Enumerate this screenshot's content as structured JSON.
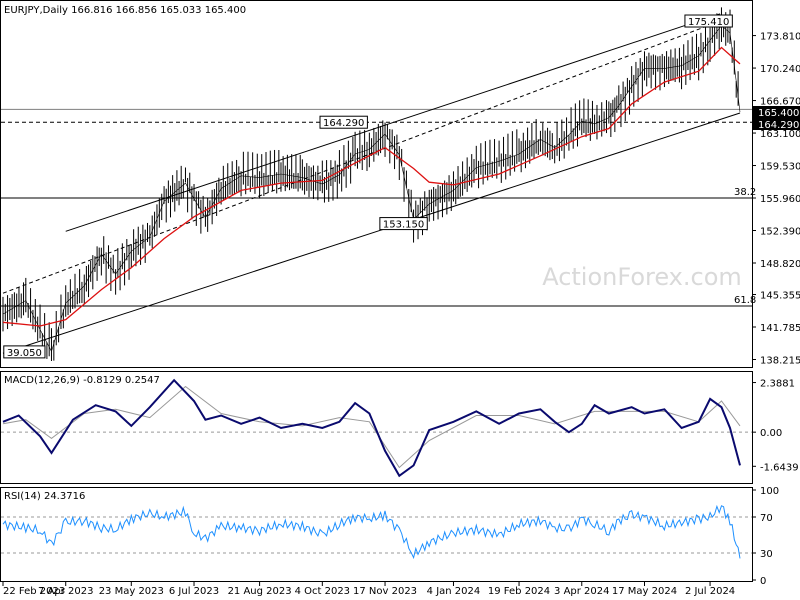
{
  "chart_data": [
    {
      "type": "line",
      "panel": "price",
      "title": "EURJPY,Daily  166.816 166.856 165.033 165.400",
      "symbol": "EURJPY",
      "timeframe": "Daily",
      "ohlc_last": {
        "open": 166.816,
        "high": 166.856,
        "low": 165.033,
        "close": 165.4
      },
      "ylim": [
        137.5,
        177.5
      ],
      "y_ticks": [
        "173.810",
        "170.240",
        "166.670",
        "163.100",
        "159.530",
        "155.960",
        "152.390",
        "148.820",
        "145.355",
        "141.785",
        "138.215"
      ],
      "x_ticks": [
        "22 Feb 2023",
        "7 Apr 2023",
        "23 May 2023",
        "6 Jul 2023",
        "21 Aug 2023",
        "4 Oct 2023",
        "17 Nov 2023",
        "4 Jan 2024",
        "19 Feb 2024",
        "3 Apr 2024",
        "17 May 2024",
        "2 Jul 2024"
      ],
      "grid": false,
      "watermark": "ActionForex.com",
      "price_labels": {
        "current": "165.400",
        "support": "164.290"
      },
      "annotations": [
        {
          "text": "175.410",
          "x": "early Jul 2024",
          "y": 175.41
        },
        {
          "text": "164.290",
          "x": "mid Oct 2023",
          "y": 164.29
        },
        {
          "text": "153.150",
          "x": "early Dec 2023",
          "y": 153.15
        },
        {
          "text": "39.050",
          "x": "late Mar 2023",
          "y": 139.05
        }
      ],
      "fib_levels": [
        {
          "label": "38.2",
          "value": 155.96
        },
        {
          "label": "61.8",
          "value": 144.1
        }
      ],
      "horizontal_levels": [
        164.29,
        165.7
      ],
      "series": [
        {
          "name": "Close",
          "color": "#000000",
          "x": [
            "2023-02-22",
            "2023-03-10",
            "2023-03-20",
            "2023-03-28",
            "2023-04-07",
            "2023-04-20",
            "2023-05-02",
            "2023-05-12",
            "2023-05-23",
            "2023-06-05",
            "2023-06-15",
            "2023-06-30",
            "2023-07-06",
            "2023-07-14",
            "2023-07-25",
            "2023-08-08",
            "2023-08-21",
            "2023-09-05",
            "2023-09-20",
            "2023-10-04",
            "2023-10-16",
            "2023-10-27",
            "2023-11-06",
            "2023-11-17",
            "2023-11-27",
            "2023-12-07",
            "2023-12-18",
            "2024-01-04",
            "2024-01-20",
            "2024-02-05",
            "2024-02-19",
            "2024-03-05",
            "2024-03-15",
            "2024-03-25",
            "2024-04-03",
            "2024-04-12",
            "2024-04-22",
            "2024-04-29",
            "2024-05-08",
            "2024-05-17",
            "2024-05-31",
            "2024-06-12",
            "2024-06-24",
            "2024-07-02",
            "2024-07-10",
            "2024-07-16",
            "2024-07-19",
            "2024-07-23"
          ],
          "y": [
            143.2,
            144.7,
            141.5,
            139.1,
            144.4,
            146.3,
            149.8,
            147.6,
            150.1,
            151.7,
            155.6,
            157.6,
            155.9,
            153.8,
            157.0,
            158.4,
            158.2,
            158.6,
            158.2,
            157.5,
            158.5,
            160.8,
            161.3,
            163.0,
            160.7,
            153.6,
            155.3,
            156.8,
            159.3,
            160.0,
            160.8,
            162.4,
            161.5,
            162.9,
            164.4,
            164.1,
            164.8,
            166.1,
            168.2,
            170.2,
            170.2,
            170.5,
            171.6,
            173.3,
            174.9,
            174.1,
            170.5,
            165.4
          ]
        },
        {
          "name": "MA",
          "color": "#dd1111",
          "x": [
            "2023-02-22",
            "2023-03-20",
            "2023-04-07",
            "2023-05-02",
            "2023-05-23",
            "2023-06-15",
            "2023-07-06",
            "2023-08-08",
            "2023-09-05",
            "2023-10-04",
            "2023-10-27",
            "2023-11-17",
            "2023-12-07",
            "2023-12-18",
            "2024-01-04",
            "2024-02-05",
            "2024-03-05",
            "2024-04-03",
            "2024-04-22",
            "2024-05-08",
            "2024-05-31",
            "2024-06-24",
            "2024-07-10",
            "2024-07-23"
          ],
          "y": [
            142.3,
            141.9,
            142.6,
            145.9,
            148.3,
            151.5,
            153.9,
            156.8,
            157.6,
            157.9,
            159.8,
            161.5,
            159.2,
            157.7,
            157.4,
            158.6,
            160.6,
            162.7,
            163.6,
            166.3,
            168.7,
            169.9,
            172.5,
            170.7
          ]
        }
      ]
    },
    {
      "type": "line",
      "panel": "macd",
      "title": "MACD(12,26,9) -0.8129 0.2547",
      "ylim": [
        -2.4,
        2.8
      ],
      "y_ticks": [
        "2.3881",
        "0.00",
        "-1.6439"
      ],
      "series": [
        {
          "name": "MACD",
          "color": "#0a0a6e",
          "x": [
            "2023-02-22",
            "2023-03-05",
            "2023-03-20",
            "2023-03-28",
            "2023-04-12",
            "2023-04-28",
            "2023-05-12",
            "2023-05-23",
            "2023-06-05",
            "2023-06-22",
            "2023-07-06",
            "2023-07-14",
            "2023-07-25",
            "2023-08-08",
            "2023-08-21",
            "2023-09-05",
            "2023-09-20",
            "2023-10-04",
            "2023-10-16",
            "2023-10-27",
            "2023-11-06",
            "2023-11-17",
            "2023-11-27",
            "2023-12-07",
            "2023-12-18",
            "2024-01-04",
            "2024-01-20",
            "2024-02-05",
            "2024-02-19",
            "2024-03-05",
            "2024-03-15",
            "2024-03-25",
            "2024-04-03",
            "2024-04-12",
            "2024-04-22",
            "2024-05-08",
            "2024-05-17",
            "2024-05-31",
            "2024-06-12",
            "2024-06-24",
            "2024-07-02",
            "2024-07-10",
            "2024-07-16",
            "2024-07-23"
          ],
          "y": [
            0.5,
            0.8,
            -0.2,
            -1.0,
            0.6,
            1.3,
            1.0,
            0.3,
            1.2,
            2.5,
            1.5,
            0.6,
            0.8,
            0.4,
            0.7,
            0.2,
            0.4,
            0.2,
            0.5,
            1.4,
            0.9,
            -0.9,
            -2.1,
            -1.6,
            0.1,
            0.5,
            1.0,
            0.4,
            0.9,
            1.1,
            0.5,
            0.0,
            0.4,
            1.3,
            0.9,
            1.2,
            0.9,
            1.1,
            0.2,
            0.5,
            1.6,
            1.2,
            0.2,
            -1.6
          ]
        },
        {
          "name": "Signal",
          "color": "#999999",
          "x": [
            "2023-02-22",
            "2023-03-10",
            "2023-03-28",
            "2023-04-20",
            "2023-05-12",
            "2023-06-05",
            "2023-06-30",
            "2023-07-25",
            "2023-08-21",
            "2023-09-20",
            "2023-10-16",
            "2023-11-06",
            "2023-11-27",
            "2023-12-18",
            "2024-01-20",
            "2024-02-19",
            "2024-03-15",
            "2024-04-12",
            "2024-05-08",
            "2024-05-31",
            "2024-06-24",
            "2024-07-10",
            "2024-07-23"
          ],
          "y": [
            0.4,
            0.6,
            -0.3,
            0.9,
            1.1,
            0.7,
            2.2,
            0.9,
            0.5,
            0.3,
            0.7,
            0.5,
            -1.7,
            -0.4,
            0.8,
            0.8,
            0.4,
            1.0,
            1.0,
            1.0,
            0.5,
            1.5,
            0.3
          ]
        }
      ],
      "zero_line": 0.0
    },
    {
      "type": "line",
      "panel": "rsi",
      "title": "RSI(14) 24.3716",
      "ylim": [
        0,
        100
      ],
      "y_ticks": [
        "100",
        "70",
        "30",
        "0"
      ],
      "levels": [
        70,
        30
      ],
      "series": [
        {
          "name": "RSI",
          "color": "#1e90ff",
          "x": [
            "2023-02-22",
            "2023-03-10",
            "2023-03-20",
            "2023-03-28",
            "2023-04-07",
            "2023-04-20",
            "2023-05-02",
            "2023-05-12",
            "2023-05-23",
            "2023-06-05",
            "2023-06-15",
            "2023-06-30",
            "2023-07-06",
            "2023-07-14",
            "2023-07-25",
            "2023-08-08",
            "2023-08-21",
            "2023-09-05",
            "2023-09-20",
            "2023-10-04",
            "2023-10-16",
            "2023-10-27",
            "2023-11-06",
            "2023-11-17",
            "2023-11-27",
            "2023-12-07",
            "2023-12-18",
            "2024-01-04",
            "2024-01-20",
            "2024-02-05",
            "2024-02-19",
            "2024-03-05",
            "2024-03-15",
            "2024-03-25",
            "2024-04-03",
            "2024-04-12",
            "2024-04-22",
            "2024-04-29",
            "2024-05-08",
            "2024-05-17",
            "2024-05-31",
            "2024-06-12",
            "2024-06-24",
            "2024-07-02",
            "2024-07-10",
            "2024-07-16",
            "2024-07-19",
            "2024-07-23"
          ],
          "y": [
            62,
            58,
            55,
            40,
            64,
            66,
            58,
            56,
            68,
            74,
            70,
            76,
            52,
            46,
            60,
            58,
            55,
            62,
            60,
            50,
            62,
            70,
            68,
            72,
            55,
            28,
            42,
            52,
            56,
            50,
            62,
            66,
            58,
            56,
            68,
            62,
            54,
            66,
            72,
            70,
            60,
            64,
            68,
            70,
            82,
            66,
            48,
            24
          ]
        }
      ]
    }
  ]
}
